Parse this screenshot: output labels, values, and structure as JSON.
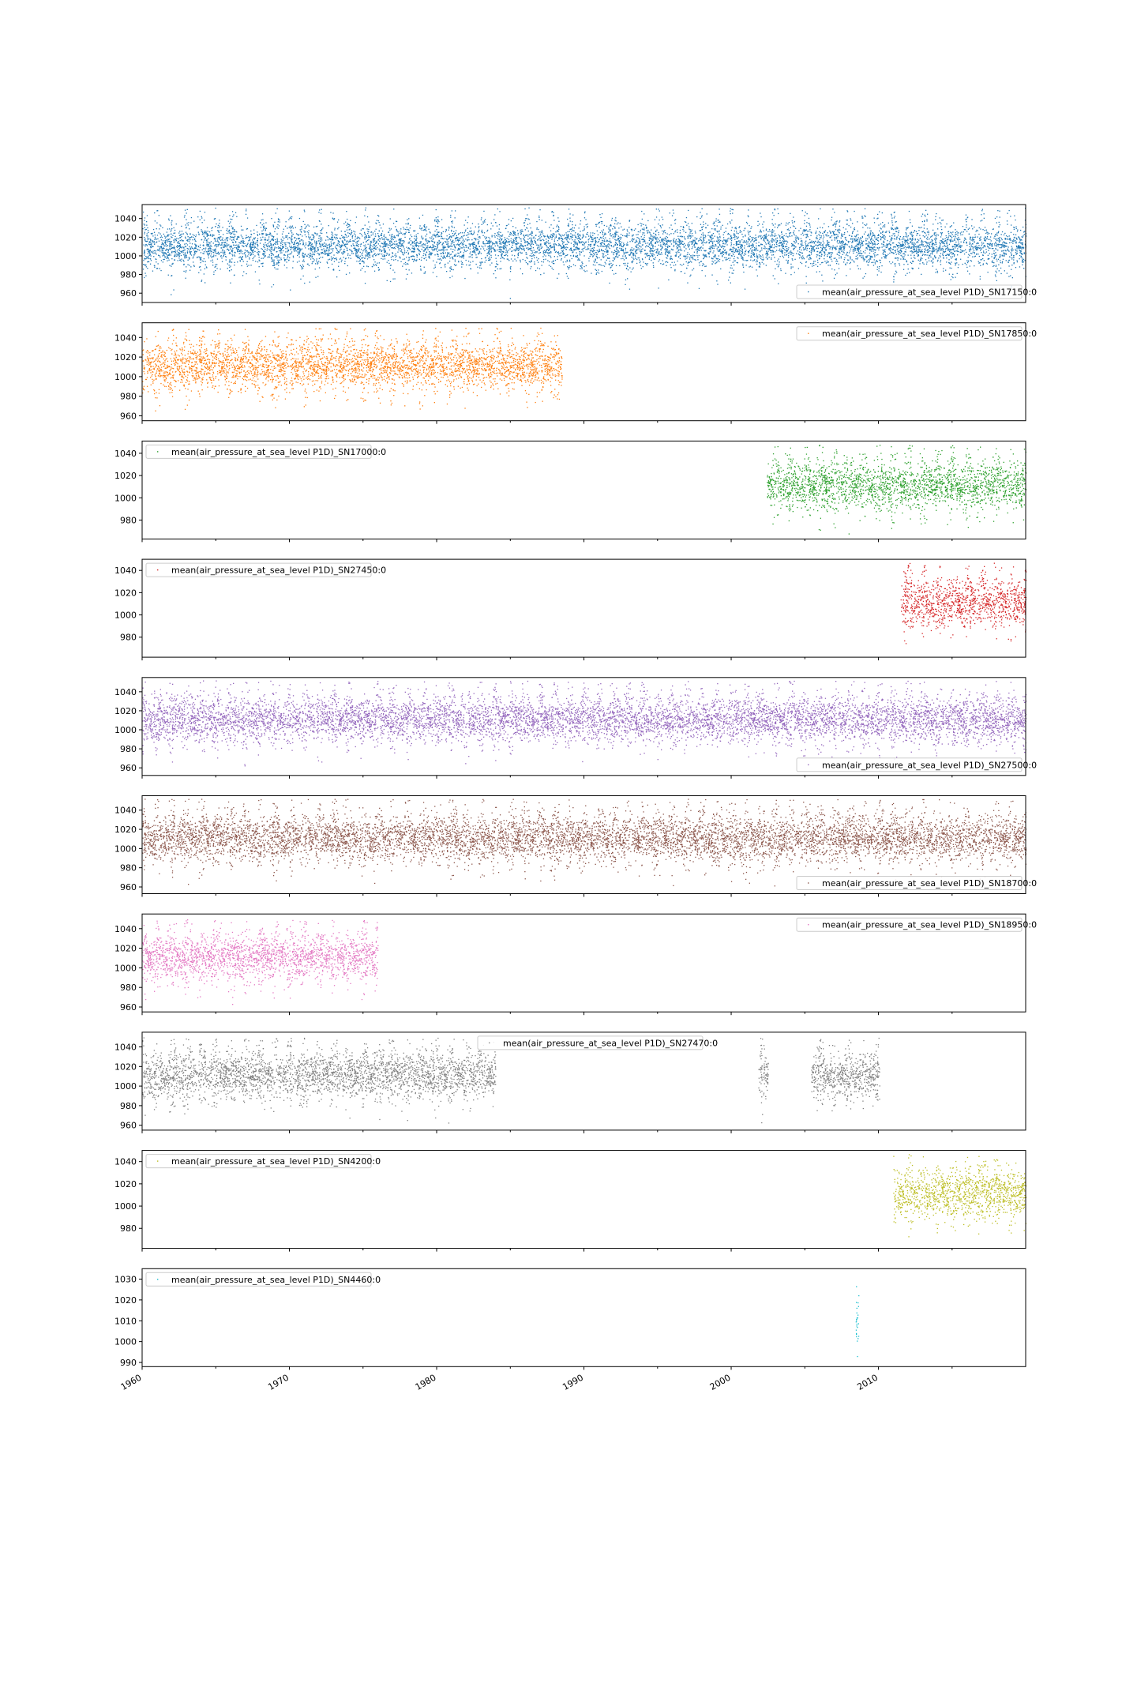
{
  "chart_data": {
    "type": "scatter",
    "marker": "small dots",
    "x_axis": {
      "type": "date",
      "range": [
        "1960-01-01",
        "2019-12-31"
      ],
      "tick_labels": [
        "1960",
        "1970",
        "1980",
        "1990",
        "2000",
        "2010"
      ],
      "shared": true
    },
    "grid": false,
    "panels": [
      {
        "legend": "mean(air_pressure_at_sea_level P1D)_SN17150:0",
        "legend_loc": "lower-right",
        "color": "#1f77b4",
        "ylim": [
          950,
          1055
        ],
        "y_ticks": [
          "960",
          "980",
          "1000",
          "1020",
          "1040"
        ],
        "segments": [
          [
            "1960-01-01",
            "2019-12-31"
          ]
        ],
        "center": 1012,
        "spread": 13,
        "min": 955,
        "max": 1052
      },
      {
        "legend": "mean(air_pressure_at_sea_level P1D)_SN17850:0",
        "legend_loc": "upper-right",
        "color": "#ff7f0e",
        "ylim": [
          955,
          1055
        ],
        "y_ticks": [
          "960",
          "980",
          "1000",
          "1020",
          "1040"
        ],
        "segments": [
          [
            "1960-01-01",
            "1988-06-30"
          ]
        ],
        "center": 1012,
        "spread": 13,
        "min": 962,
        "max": 1050
      },
      {
        "legend": "mean(air_pressure_at_sea_level P1D)_SN17000:0",
        "legend_loc": "upper-left",
        "color": "#2ca02c",
        "ylim": [
          963,
          1051
        ],
        "y_ticks": [
          "980",
          "1000",
          "1020",
          "1040"
        ],
        "segments": [
          [
            "2002-06-01",
            "2019-12-31"
          ]
        ],
        "center": 1012,
        "spread": 12,
        "min": 966,
        "max": 1048
      },
      {
        "legend": "mean(air_pressure_at_sea_level P1D)_SN27450:0",
        "legend_loc": "upper-left",
        "color": "#d62728",
        "ylim": [
          962,
          1050
        ],
        "y_ticks": [
          "980",
          "1000",
          "1020",
          "1040"
        ],
        "segments": [
          [
            "2011-07-01",
            "2019-12-31"
          ]
        ],
        "center": 1012,
        "spread": 12,
        "min": 965,
        "max": 1047
      },
      {
        "legend": "mean(air_pressure_at_sea_level P1D)_SN27500:0",
        "legend_loc": "lower-right",
        "color": "#9467bd",
        "ylim": [
          952,
          1055
        ],
        "y_ticks": [
          "960",
          "980",
          "1000",
          "1020",
          "1040"
        ],
        "segments": [
          [
            "1960-01-01",
            "2019-12-31"
          ]
        ],
        "center": 1012,
        "spread": 13,
        "min": 955,
        "max": 1052
      },
      {
        "legend": "mean(air_pressure_at_sea_level P1D)_SN18700:0",
        "legend_loc": "lower-right",
        "color": "#8c564b",
        "ylim": [
          953,
          1055
        ],
        "y_ticks": [
          "960",
          "980",
          "1000",
          "1020",
          "1040"
        ],
        "segments": [
          [
            "1960-01-01",
            "2019-12-31"
          ]
        ],
        "center": 1012,
        "spread": 13,
        "min": 956,
        "max": 1052
      },
      {
        "legend": "mean(air_pressure_at_sea_level P1D)_SN18950:0",
        "legend_loc": "upper-right",
        "color": "#e377c2",
        "ylim": [
          955,
          1055
        ],
        "y_ticks": [
          "960",
          "980",
          "1000",
          "1020",
          "1040"
        ],
        "segments": [
          [
            "1960-01-01",
            "1975-12-31"
          ]
        ],
        "center": 1012,
        "spread": 13,
        "min": 962,
        "max": 1050
      },
      {
        "legend": "mean(air_pressure_at_sea_level P1D)_SN27470:0",
        "legend_loc": "upper-center",
        "color": "#7f7f7f",
        "ylim": [
          955,
          1055
        ],
        "y_ticks": [
          "960",
          "980",
          "1000",
          "1020",
          "1040"
        ],
        "segments": [
          [
            "1960-01-01",
            "1983-12-31"
          ],
          [
            "2001-11-01",
            "2002-06-30"
          ],
          [
            "2005-06-01",
            "2010-01-31"
          ]
        ],
        "center": 1012,
        "spread": 13,
        "min": 962,
        "max": 1050
      },
      {
        "legend": "mean(air_pressure_at_sea_level P1D)_SN4200:0",
        "legend_loc": "upper-left",
        "color": "#bcbd22",
        "ylim": [
          962,
          1050
        ],
        "y_ticks": [
          "980",
          "1000",
          "1020",
          "1040"
        ],
        "segments": [
          [
            "2011-01-01",
            "2019-12-31"
          ]
        ],
        "center": 1012,
        "spread": 12,
        "min": 972,
        "max": 1047
      },
      {
        "legend": "mean(air_pressure_at_sea_level P1D)_SN4460:0",
        "legend_loc": "upper-left",
        "color": "#17becf",
        "ylim": [
          988,
          1035
        ],
        "y_ticks": [
          "990",
          "1000",
          "1010",
          "1020",
          "1030"
        ],
        "segments": [
          [
            "2008-06-10",
            "2008-08-20"
          ]
        ],
        "center": 1012,
        "spread": 10,
        "min": 991,
        "max": 1033
      }
    ]
  }
}
